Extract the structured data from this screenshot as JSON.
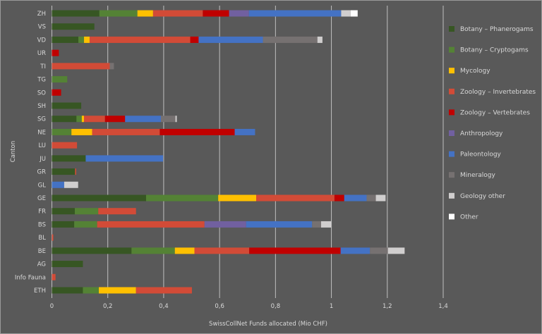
{
  "chart_data": {
    "type": "bar",
    "orientation": "horizontal",
    "stacked": true,
    "title": "",
    "xlabel": "SwissCollNet Funds allocated (Mio CHF)",
    "ylabel": "Canton",
    "xlim": [
      0,
      1.4
    ],
    "xticks": [
      "0",
      "0,2",
      "0,4",
      "0,6",
      "0,8",
      "1",
      "1,2",
      "1,4"
    ],
    "xtick_values": [
      0,
      0.2,
      0.4,
      0.6,
      0.8,
      1.0,
      1.2,
      1.4
    ],
    "grid": "vertical",
    "legend_position": "right",
    "categories": [
      "ZH",
      "VS",
      "VD",
      "UR",
      "TI",
      "TG",
      "SO",
      "SH",
      "SG",
      "NE",
      "LU",
      "JU",
      "GR",
      "GL",
      "GE",
      "FR",
      "BS",
      "BL",
      "BE",
      "AG",
      "Info Fauna",
      "ETH"
    ],
    "series": [
      {
        "name": "Botany – Phanerogams",
        "color": "#375623",
        "values": [
          0.17,
          0.152,
          0.095,
          0,
          0,
          0,
          0,
          0.105,
          0.088,
          0,
          0,
          0.121,
          0.083,
          0,
          0.337,
          0.082,
          0.08,
          0,
          0.285,
          0.111,
          0,
          0.111
        ]
      },
      {
        "name": "Botany – Cryptogams",
        "color": "#548235",
        "values": [
          0.136,
          0,
          0.02,
          0,
          0,
          0.055,
          0,
          0,
          0.019,
          0.07,
          0,
          0,
          0,
          0,
          0.258,
          0.084,
          0.082,
          0,
          0.155,
          0,
          0,
          0.057
        ]
      },
      {
        "name": "Mycology",
        "color": "#FFC000",
        "values": [
          0.056,
          0,
          0.02,
          0,
          0,
          0,
          0,
          0,
          0.008,
          0.074,
          0,
          0,
          0,
          0,
          0.136,
          0,
          0,
          0,
          0.07,
          0,
          0,
          0.133
        ]
      },
      {
        "name": "Zoology – Invertebrates",
        "color": "#D24B37",
        "values": [
          0.178,
          0,
          0.36,
          0,
          0.207,
          0,
          0,
          0,
          0.075,
          0.242,
          0.09,
          0,
          0.004,
          0,
          0.28,
          0.135,
          0.384,
          0.005,
          0.196,
          0,
          0.013,
          0.2
        ]
      },
      {
        "name": "Zoology – Vertebrates",
        "color": "#C00000",
        "values": [
          0.094,
          0,
          0.03,
          0.025,
          0,
          0,
          0.033,
          0,
          0.072,
          0.268,
          0,
          0,
          0,
          0,
          0.035,
          0,
          0,
          0,
          0.327,
          0,
          0,
          0
        ]
      },
      {
        "name": "Anthropology",
        "color": "#7160A0",
        "values": [
          0.071,
          0,
          0,
          0,
          0,
          0,
          0,
          0,
          0,
          0,
          0,
          0,
          0,
          0,
          0,
          0,
          0.149,
          0,
          0,
          0,
          0,
          0
        ]
      },
      {
        "name": "Paleontology",
        "color": "#4472C4",
        "values": [
          0.33,
          0,
          0.23,
          0,
          0,
          0,
          0,
          0,
          0.128,
          0.073,
          0,
          0.277,
          0,
          0.044,
          0.08,
          0,
          0.236,
          0,
          0.105,
          0,
          0,
          0
        ]
      },
      {
        "name": "Mineralogy",
        "color": "#767171",
        "values": [
          0,
          0,
          0.195,
          0,
          0.015,
          0,
          0,
          0,
          0.052,
          0,
          0,
          0,
          0,
          0,
          0.033,
          0,
          0.032,
          0,
          0.064,
          0,
          0,
          0
        ]
      },
      {
        "name": "Geology other",
        "color": "#D0CECE",
        "values": [
          0.034,
          0,
          0.018,
          0,
          0,
          0,
          0,
          0,
          0.005,
          0,
          0,
          0,
          0,
          0.05,
          0.035,
          0,
          0.036,
          0,
          0.06,
          0,
          0,
          0
        ]
      },
      {
        "name": "Other",
        "color": "#FFFFFF",
        "values": [
          0.025,
          0,
          0,
          0,
          0,
          0,
          0,
          0,
          0,
          0,
          0,
          0,
          0,
          0,
          0,
          0,
          0,
          0,
          0,
          0,
          0,
          0
        ]
      }
    ]
  }
}
